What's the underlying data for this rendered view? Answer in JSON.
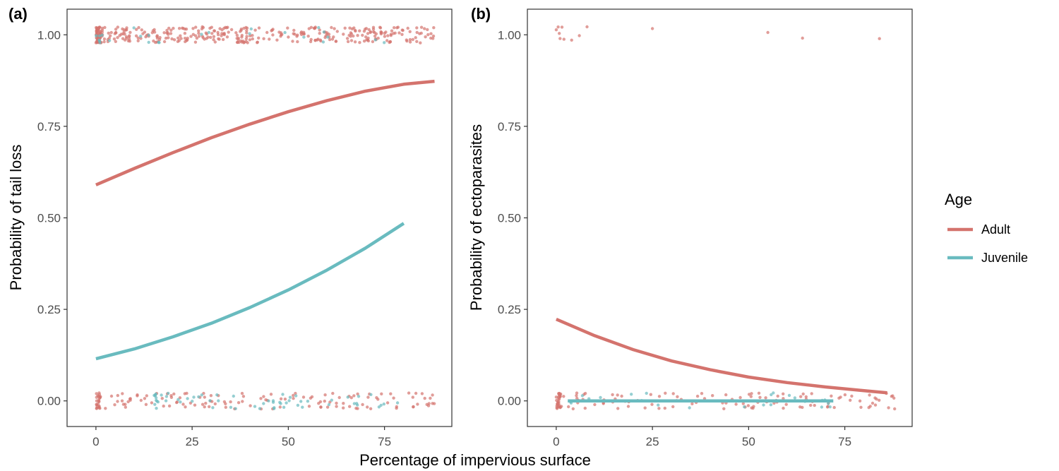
{
  "colors": {
    "adult": "#d4736d",
    "juvenile": "#69bbbf"
  },
  "xlabel": "Percentage of impervious surface",
  "legend": {
    "title": "Age",
    "position": "right",
    "items": [
      {
        "label": "Adult",
        "color": "#d4736d"
      },
      {
        "label": "Juvenile",
        "color": "#69bbbf"
      }
    ]
  },
  "chart_data": [
    {
      "type": "line",
      "panel_tag": "(a)",
      "ylabel": "Probability of tail loss",
      "xlim": [
        -7.5,
        92.5
      ],
      "ylim": [
        -0.07,
        1.07
      ],
      "x_ticks": [
        0,
        25,
        50,
        75
      ],
      "x_tick_labels": [
        "0",
        "25",
        "50",
        "75"
      ],
      "y_ticks": [
        0,
        0.25,
        0.5,
        0.75,
        1
      ],
      "y_tick_labels": [
        "0.00",
        "0.25",
        "0.50",
        "0.75",
        "1.00"
      ],
      "grid": false,
      "series": [
        {
          "name": "Adult",
          "color": "#d4736d",
          "x": [
            0,
            10,
            20,
            30,
            40,
            50,
            60,
            70,
            80,
            88
          ],
          "y": [
            0.59,
            0.635,
            0.678,
            0.719,
            0.756,
            0.79,
            0.82,
            0.846,
            0.865,
            0.873
          ]
        },
        {
          "name": "Juvenile",
          "color": "#69bbbf",
          "x": [
            0,
            10,
            20,
            30,
            40,
            50,
            60,
            70,
            80
          ],
          "y": [
            0.115,
            0.142,
            0.175,
            0.212,
            0.255,
            0.303,
            0.357,
            0.417,
            0.485
          ]
        }
      ],
      "observations": [
        {
          "name": "Adult",
          "outcome": 1,
          "count": 400,
          "x_range": [
            0,
            88
          ]
        },
        {
          "name": "Juvenile",
          "outcome": 1,
          "count": 25,
          "x_range": [
            0,
            80
          ]
        },
        {
          "name": "Adult",
          "outcome": 0,
          "count": 150,
          "x_range": [
            0,
            88
          ]
        },
        {
          "name": "Juvenile",
          "outcome": 0,
          "count": 60,
          "x_range": [
            15,
            80
          ]
        }
      ]
    },
    {
      "type": "line",
      "panel_tag": "(b)",
      "ylabel": "Probability of ectoparasites",
      "xlim": [
        -7.5,
        92.5
      ],
      "ylim": [
        -0.07,
        1.07
      ],
      "x_ticks": [
        0,
        25,
        50,
        75
      ],
      "x_tick_labels": [
        "0",
        "25",
        "50",
        "75"
      ],
      "y_ticks": [
        0,
        0.25,
        0.5,
        0.75,
        1
      ],
      "y_tick_labels": [
        "0.00",
        "0.25",
        "0.50",
        "0.75",
        "1.00"
      ],
      "grid": false,
      "series": [
        {
          "name": "Adult",
          "color": "#d4736d",
          "x": [
            0,
            10,
            20,
            30,
            40,
            50,
            60,
            70,
            80,
            86
          ],
          "y": [
            0.223,
            0.178,
            0.14,
            0.109,
            0.085,
            0.065,
            0.05,
            0.038,
            0.028,
            0.022
          ]
        },
        {
          "name": "Juvenile",
          "color": "#69bbbf",
          "x": [
            3,
            72
          ],
          "y": [
            0.0,
            0.0
          ]
        }
      ],
      "observations": [
        {
          "name": "Adult",
          "outcome": 1,
          "points_x": [
            0,
            0.5,
            1,
            1.5,
            2,
            0.8,
            4,
            6,
            8,
            25,
            55,
            64,
            84
          ]
        },
        {
          "name": "Adult",
          "outcome": 0,
          "count": 140,
          "x_range": [
            0,
            88
          ]
        },
        {
          "name": "Juvenile",
          "outcome": 0,
          "count": 25,
          "x_range": [
            3,
            72
          ]
        }
      ]
    }
  ]
}
